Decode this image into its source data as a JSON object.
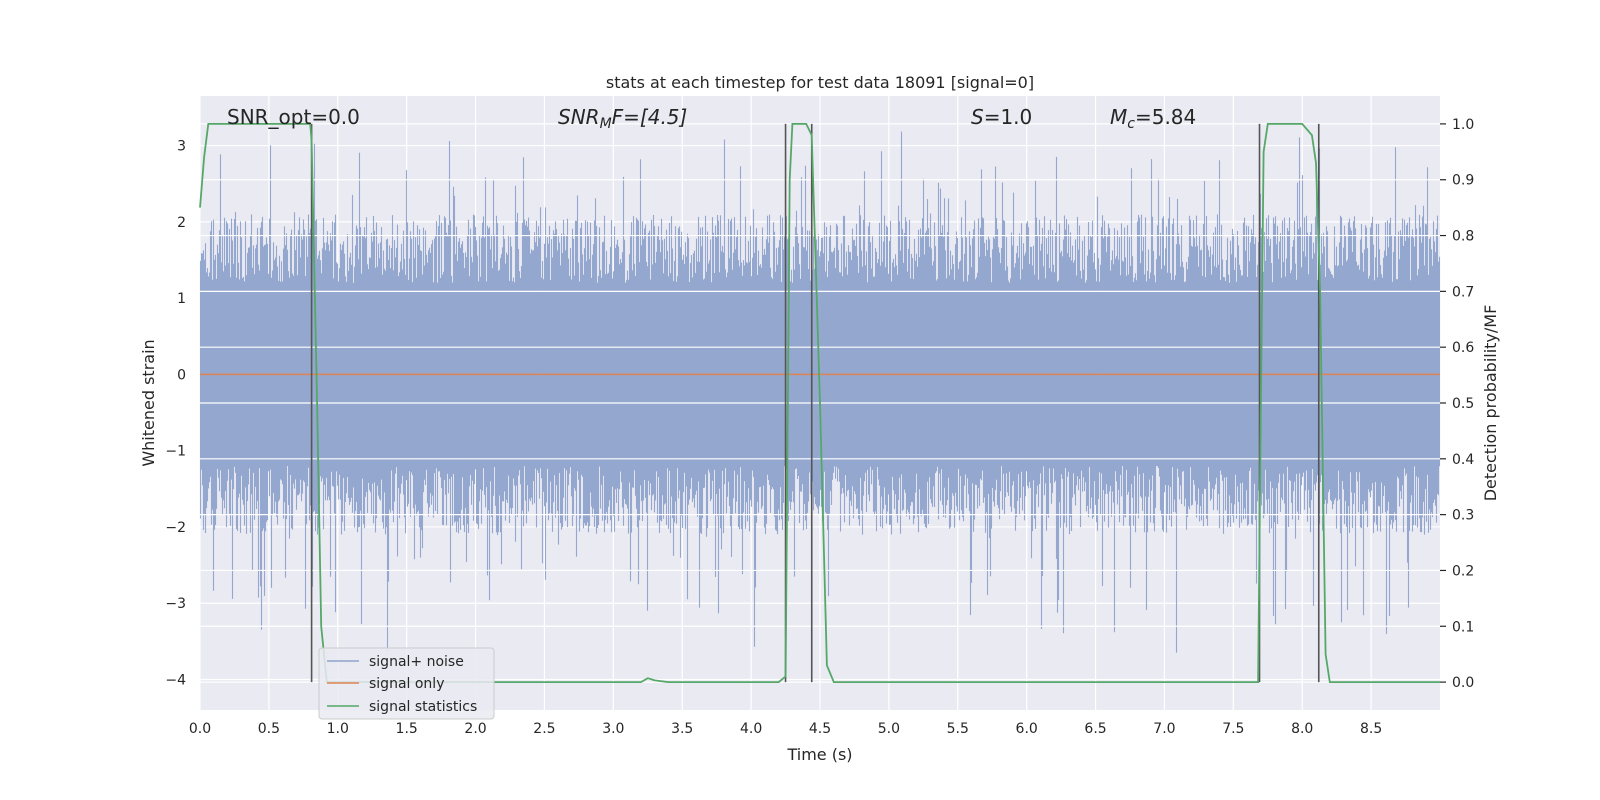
{
  "chart_data": {
    "type": "line",
    "title": "stats at each timestep for test data 18091 [signal=0]",
    "xlabel": "Time (s)",
    "ylabel": "Whitened strain",
    "ylabel_right": "Detection probability/MF",
    "xlim": [
      0,
      9
    ],
    "ylim": [
      -4.4,
      3.65
    ],
    "ylim_right": [
      -0.05,
      1.05
    ],
    "xticks": [
      "0.0",
      "0.5",
      "1.0",
      "1.5",
      "2.0",
      "2.5",
      "3.0",
      "3.5",
      "4.0",
      "4.5",
      "5.0",
      "5.5",
      "6.0",
      "6.5",
      "7.0",
      "7.5",
      "8.0",
      "8.5"
    ],
    "yticks": [
      "3",
      "2",
      "1",
      "0",
      "−1",
      "−2",
      "−3",
      "−4"
    ],
    "yticks_right": [
      "1.0",
      "0.9",
      "0.8",
      "0.7",
      "0.6",
      "0.5",
      "0.4",
      "0.3",
      "0.2",
      "0.1",
      "0.0"
    ],
    "annotations": {
      "snr_opt": "SNR_opt=0.0",
      "snr_mf_sym": "SNR",
      "snr_mf_sub": "M",
      "snr_mf_rest": "F=[4.5]",
      "s_sym": "S",
      "s_rest": "=1.0",
      "mc_sym": "M",
      "mc_sub": "c",
      "mc_rest": "=5.84"
    },
    "series": [
      {
        "name": "signal+ noise",
        "color": "#8fa3cb",
        "description_range": [
          -3.8,
          3.3
        ]
      },
      {
        "name": "signal only",
        "color": "#dd8452",
        "values_constant": 0
      },
      {
        "name": "signal statistics",
        "color": "#55a868",
        "x": [
          0,
          0.03,
          0.06,
          0.1,
          0.15,
          0.3,
          0.5,
          0.7,
          0.8,
          0.81,
          0.85,
          0.88,
          0.92,
          1.0,
          1.5,
          2.0,
          2.5,
          3.0,
          3.2,
          3.25,
          3.3,
          3.4,
          3.6,
          4.0,
          4.2,
          4.25,
          4.28,
          4.3,
          4.4,
          4.44,
          4.5,
          4.55,
          4.6,
          5.0,
          5.5,
          6.0,
          6.5,
          7.0,
          7.5,
          7.68,
          7.7,
          7.72,
          7.75,
          7.8,
          8.0,
          8.07,
          8.1,
          8.13,
          8.17,
          8.2,
          8.25,
          8.5,
          9.0
        ],
        "y": [
          0.85,
          0.94,
          1.0,
          1.0,
          1.0,
          1.0,
          1.0,
          1.0,
          1.0,
          0.97,
          0.5,
          0.1,
          0.0,
          0.0,
          0.0,
          0.0,
          0.0,
          0.0,
          0.0,
          0.007,
          0.003,
          0.0,
          0.0,
          0.0,
          0.0,
          0.01,
          0.9,
          1.0,
          1.0,
          0.98,
          0.5,
          0.03,
          0.0,
          0.0,
          0.0,
          0.0,
          0.0,
          0.0,
          0.0,
          0.0,
          0.5,
          0.95,
          1.0,
          1.0,
          1.0,
          0.98,
          0.93,
          0.7,
          0.05,
          0.0,
          0.0,
          0.0,
          0.0
        ]
      }
    ],
    "vlines": [
      0.81,
      4.25,
      4.44,
      7.69,
      8.12
    ],
    "legend": [
      "signal+ noise",
      "signal only",
      "signal statistics"
    ],
    "legend_position": "lower-left",
    "grid": true
  }
}
